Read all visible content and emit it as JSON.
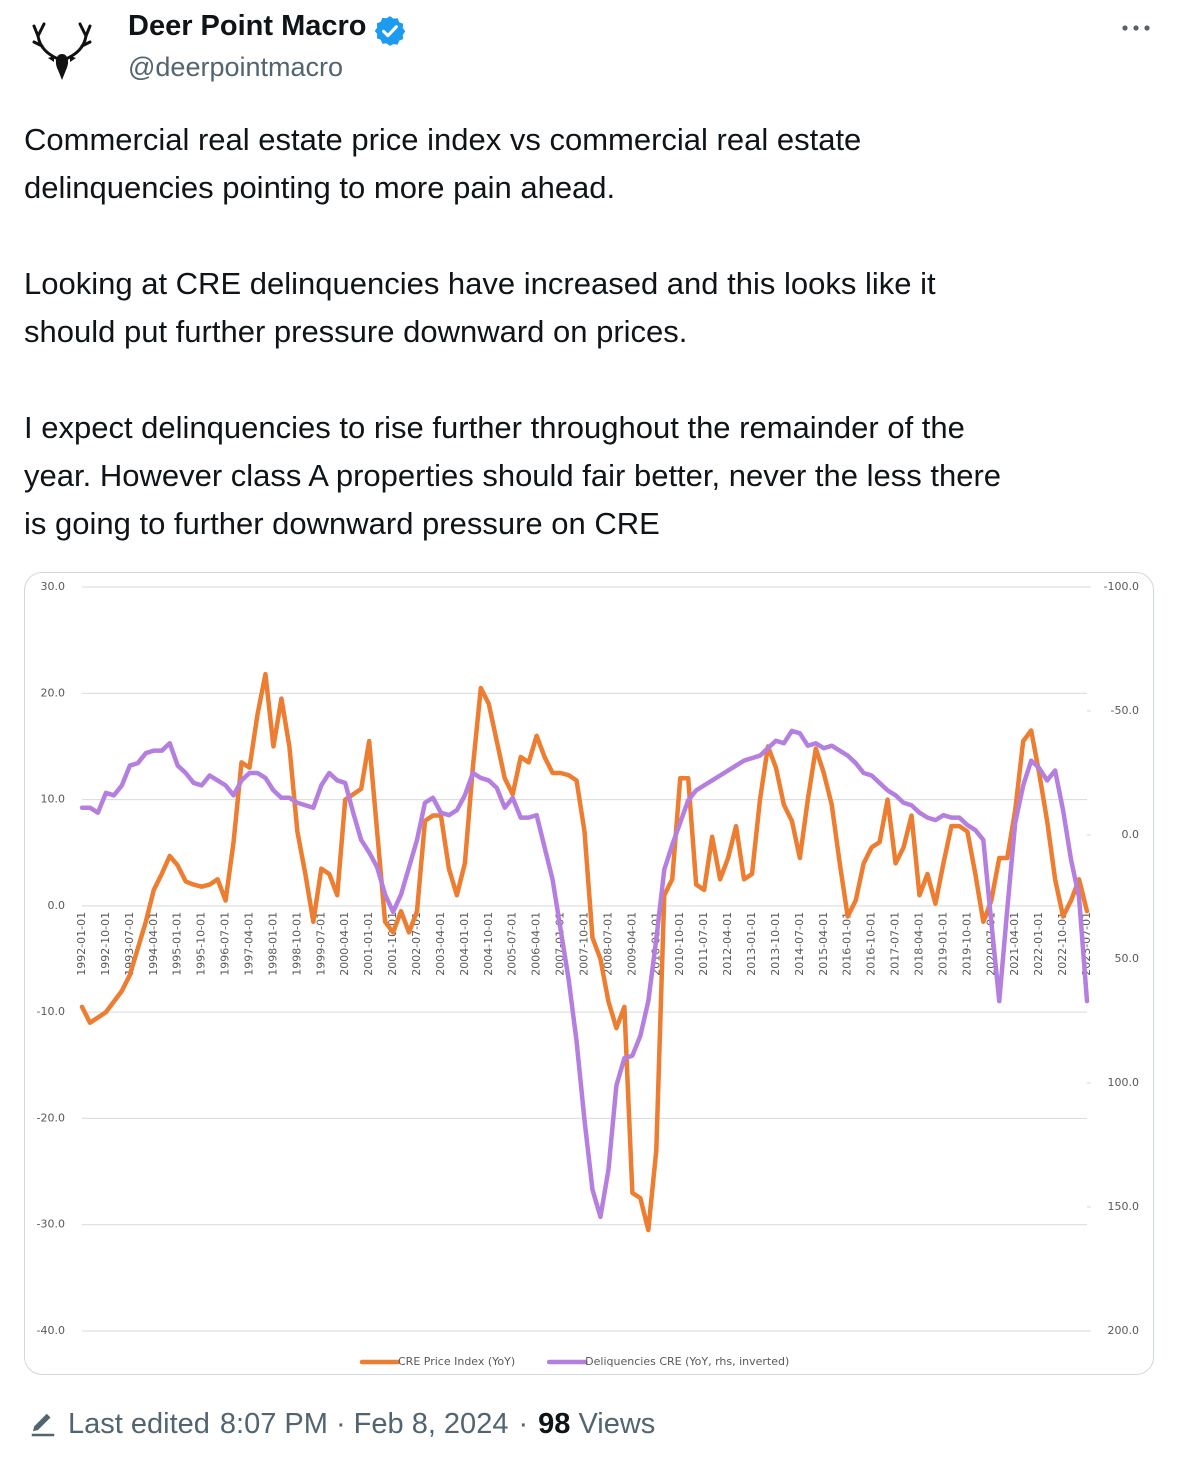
{
  "post": {
    "author_name": "Deer Point Macro",
    "handle": "@deerpointmacro",
    "body": [
      [
        "Commercial real estate price index vs commercial real estate",
        "delinquencies pointing to more pain ahead."
      ],
      [
        "Looking at CRE delinquencies have increased and this looks like it",
        "should put further pressure downward on prices."
      ],
      [
        "I expect delinquencies to rise further throughout the remainder of the",
        "year. However class A properties should fair better, never the less there",
        "is going to further downward pressure on CRE"
      ]
    ],
    "edited_label": "Last edited",
    "timestamp": "8:07 PM · Feb 8, 2024",
    "separator": "·",
    "views_count": "98",
    "views_label": "Views"
  },
  "chart_data": {
    "type": "line",
    "categories": [
      "1992-01-01",
      null,
      null,
      "1992-10-01",
      null,
      null,
      "1993-07-01",
      null,
      null,
      "1994-04-01",
      null,
      null,
      "1995-01-01",
      null,
      null,
      "1995-10-01",
      null,
      null,
      "1996-07-01",
      null,
      null,
      "1997-04-01",
      null,
      null,
      "1998-01-01",
      null,
      null,
      "1998-10-01",
      null,
      null,
      "1999-07-01",
      null,
      null,
      "2000-04-01",
      null,
      null,
      "2001-01-01",
      null,
      null,
      "2001-10-01",
      null,
      null,
      "2002-07-01",
      null,
      null,
      "2003-04-01",
      null,
      null,
      "2004-01-01",
      null,
      null,
      "2004-10-01",
      null,
      null,
      "2005-07-01",
      null,
      null,
      "2006-04-01",
      null,
      null,
      "2007-01-01",
      null,
      null,
      "2007-10-01",
      null,
      null,
      "2008-07-01",
      null,
      null,
      "2009-04-01",
      null,
      null,
      "2010-01-01",
      null,
      null,
      "2010-10-01",
      null,
      null,
      "2011-07-01",
      null,
      null,
      "2012-04-01",
      null,
      null,
      "2013-01-01",
      null,
      null,
      "2013-10-01",
      null,
      null,
      "2014-07-01",
      null,
      null,
      "2015-04-01",
      null,
      null,
      "2016-01-01",
      null,
      null,
      "2016-10-01",
      null,
      null,
      "2017-07-01",
      null,
      null,
      "2018-04-01",
      null,
      null,
      "2019-01-01",
      null,
      null,
      "2019-10-01",
      null,
      null,
      "2020-07-01",
      null,
      null,
      "2021-04-01",
      null,
      null,
      "2022-01-01",
      null,
      null,
      "2022-10-01",
      null,
      null,
      "2023-07-01"
    ],
    "series": [
      {
        "name": "CRE Price Index (YoY)",
        "color": "#ed7d31",
        "axis": "y",
        "values": [
          -9.5,
          -11,
          -10.5,
          -10,
          -9,
          -8,
          -6.5,
          -4,
          -1.5,
          1.5,
          3,
          4.7,
          3.8,
          2.3,
          2,
          1.8,
          2,
          2.5,
          0.5,
          6,
          13.5,
          13,
          18,
          21.8,
          15,
          19.5,
          15,
          7,
          3,
          -1.5,
          3.5,
          3,
          1,
          10,
          10.5,
          11,
          15.5,
          7,
          -1.5,
          -2.5,
          -0.5,
          -2.5,
          -0.5,
          8,
          8.5,
          8.5,
          3.5,
          1,
          4,
          13,
          20.5,
          19,
          15.5,
          12,
          10.5,
          14,
          13.5,
          16,
          14,
          12.5,
          12.5,
          12.3,
          11.8,
          7,
          -3,
          -5,
          -9,
          -11.5,
          -9.5,
          -27,
          -27.5,
          -30.5,
          -23,
          1,
          2.5,
          12,
          12,
          2,
          1.5,
          6.5,
          2.5,
          4.5,
          7.5,
          2.5,
          3,
          10,
          15,
          13,
          9.5,
          8,
          4.5,
          10,
          14.8,
          12.5,
          9.5,
          4,
          -1,
          0.5,
          4,
          5.5,
          6,
          10,
          4,
          5.5,
          8.5,
          1,
          3,
          0.2,
          4,
          7.5,
          7.5,
          7,
          3,
          -1.5,
          0.5,
          4.5,
          4.5,
          9,
          15.5,
          16.5,
          12.5,
          8,
          2.5,
          -1,
          0.5,
          2.5,
          -0.5
        ]
      },
      {
        "name": "Deliquencies CRE (YoY, rhs, inverted)",
        "color": "#b57fdf",
        "axis": "y2",
        "values": [
          -11,
          -11,
          -9,
          -17,
          -16,
          -20,
          -28,
          -29,
          -33,
          -34,
          -34,
          -37,
          -28,
          -25,
          -21,
          -20,
          -24,
          -22,
          -20,
          -16,
          -22,
          -25,
          -25,
          -23,
          -18,
          -15,
          -15,
          -13,
          -12,
          -11,
          -20,
          -25,
          -22,
          -21,
          -9,
          2,
          7,
          13,
          24,
          31,
          24,
          13,
          2,
          -13,
          -15,
          -9,
          -8,
          -10,
          -16,
          -25,
          -23,
          -22,
          -19,
          -11,
          -15,
          -7,
          -7,
          -8,
          5,
          18,
          38,
          58,
          83,
          115,
          143,
          154,
          135,
          101,
          90,
          89,
          81,
          67,
          42,
          14,
          4,
          -5,
          -14,
          -18,
          -20,
          -22,
          -24,
          -26,
          -28,
          -30,
          -31,
          -32,
          -35,
          -38,
          -37,
          -42,
          -41,
          -36,
          -37,
          -35,
          -36,
          -34,
          -32,
          -29,
          -25,
          -24,
          -21,
          -18,
          -16,
          -13,
          -12,
          -9,
          -7,
          -6,
          -8,
          -7,
          -7,
          -4,
          -2,
          2,
          35,
          67,
          30,
          -5,
          -20,
          -30,
          -27,
          -22,
          -26,
          -10,
          10,
          25,
          67
        ]
      }
    ],
    "ylim": [
      -40,
      30
    ],
    "yticks": [
      {
        "value": -40,
        "label": "-40.0"
      },
      {
        "value": -30,
        "label": "-30.0"
      },
      {
        "value": -20,
        "label": "-20.0"
      },
      {
        "value": -10,
        "label": "-10.0"
      },
      {
        "value": 0,
        "label": "0.0"
      },
      {
        "value": 10,
        "label": "10.0"
      },
      {
        "value": 20,
        "label": "20.0"
      },
      {
        "value": 30,
        "label": "30.0"
      }
    ],
    "y2lim": [
      -100,
      200
    ],
    "y2ticks": [
      {
        "value": -100,
        "label": "-100.0"
      },
      {
        "value": -50,
        "label": "-50.0"
      },
      {
        "value": 0,
        "label": "0.0"
      },
      {
        "value": 50,
        "label": "50.0"
      },
      {
        "value": 100,
        "label": "100.0"
      },
      {
        "value": 150,
        "label": "150.0"
      },
      {
        "value": 200,
        "label": "200.0"
      }
    ],
    "y2_inverted": true,
    "grid": true,
    "legend": "bottom"
  }
}
